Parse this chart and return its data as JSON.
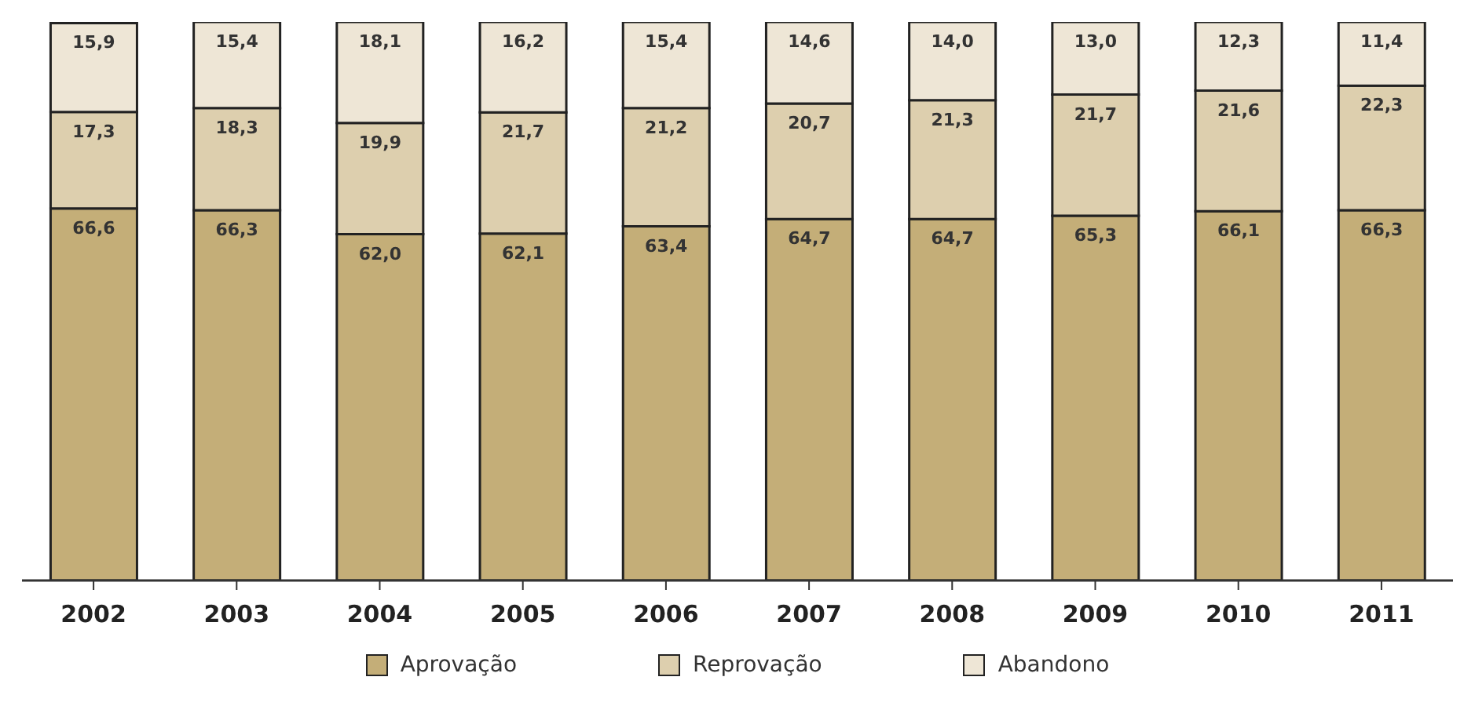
{
  "chart_data": {
    "type": "bar",
    "stacked": true,
    "categories": [
      "2002",
      "2003",
      "2004",
      "2005",
      "2006",
      "2007",
      "2008",
      "2009",
      "2010",
      "2011"
    ],
    "series": [
      {
        "name": "Aprovação",
        "color": "#c4ae78",
        "values": [
          66.6,
          66.3,
          62.0,
          62.1,
          63.4,
          64.7,
          64.7,
          65.3,
          66.1,
          66.3
        ],
        "value_labels": [
          "66,6",
          "66,3",
          "62,0",
          "62,1",
          "63,4",
          "64,7",
          "64,7",
          "65,3",
          "66,1",
          "66,3"
        ]
      },
      {
        "name": "Reprovação",
        "color": "#ddcfae",
        "values": [
          17.3,
          18.3,
          19.9,
          21.7,
          21.2,
          20.7,
          21.3,
          21.7,
          21.6,
          22.3
        ],
        "value_labels": [
          "17,3",
          "18,3",
          "19,9",
          "21,7",
          "21,2",
          "20,7",
          "21,3",
          "21,7",
          "21,6",
          "22,3"
        ]
      },
      {
        "name": "Abandono",
        "color": "#eee6d6",
        "values": [
          15.9,
          15.4,
          18.1,
          16.2,
          15.4,
          14.6,
          14.0,
          13.0,
          12.3,
          11.4
        ],
        "value_labels": [
          "15,9",
          "15,4",
          "18,1",
          "16,2",
          "15,4",
          "14,6",
          "14,0",
          "13,0",
          "12,3",
          "11,4"
        ]
      }
    ],
    "ylim": [
      0,
      100
    ],
    "tick_labels": "x",
    "legend": "bottom"
  }
}
